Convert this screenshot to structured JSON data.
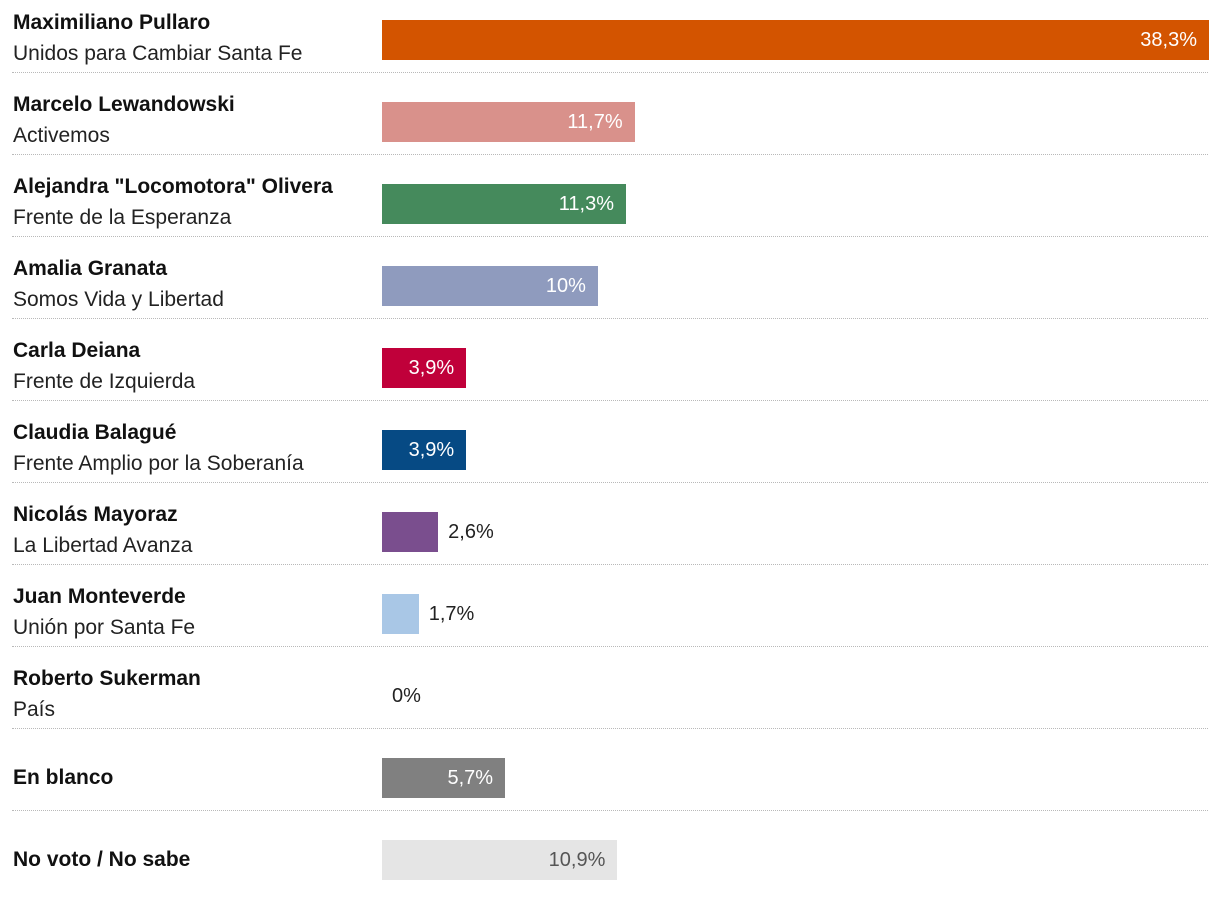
{
  "chart_data": {
    "type": "bar",
    "orientation": "horizontal",
    "xlim": [
      0,
      38.3
    ],
    "rows": [
      {
        "name": "Maximiliano Pullaro",
        "party": "Unidos para Cambiar Santa Fe",
        "value": 38.3,
        "label": "38,3%",
        "color": "#d35400"
      },
      {
        "name": "Marcelo Lewandowski",
        "party": "Activemos",
        "value": 11.7,
        "label": "11,7%",
        "color": "#d9918b"
      },
      {
        "name": "Alejandra \"Locomotora\" Olivera",
        "party": "Frente de la Esperanza",
        "value": 11.3,
        "label": "11,3%",
        "color": "#458a5c"
      },
      {
        "name": "Amalia Granata",
        "party": "Somos Vida y Libertad",
        "value": 10,
        "label": "10%",
        "color": "#8f9bbe"
      },
      {
        "name": "Carla Deiana",
        "party": "Frente de Izquierda",
        "value": 3.9,
        "label": "3,9%",
        "color": "#c0003a"
      },
      {
        "name": "Claudia Balagué",
        "party": "Frente Amplio por la Soberanía",
        "value": 3.9,
        "label": "3,9%",
        "color": "#064a84"
      },
      {
        "name": "Nicolás Mayoraz",
        "party": "La Libertad Avanza",
        "value": 2.6,
        "label": "2,6%",
        "color": "#7a4e8e"
      },
      {
        "name": "Juan Monteverde",
        "party": "Unión por Santa Fe",
        "value": 1.7,
        "label": "1,7%",
        "color": "#a9c7e6"
      },
      {
        "name": "Roberto Sukerman",
        "party": "País",
        "value": 0,
        "label": "0%",
        "color": "#cccccc"
      },
      {
        "name": "En blanco",
        "party": "",
        "value": 5.7,
        "label": "5,7%",
        "color": "#808080"
      },
      {
        "name": "No voto / No sabe",
        "party": "",
        "value": 10.9,
        "label": "10,9%",
        "color": "#e5e5e5"
      }
    ]
  }
}
